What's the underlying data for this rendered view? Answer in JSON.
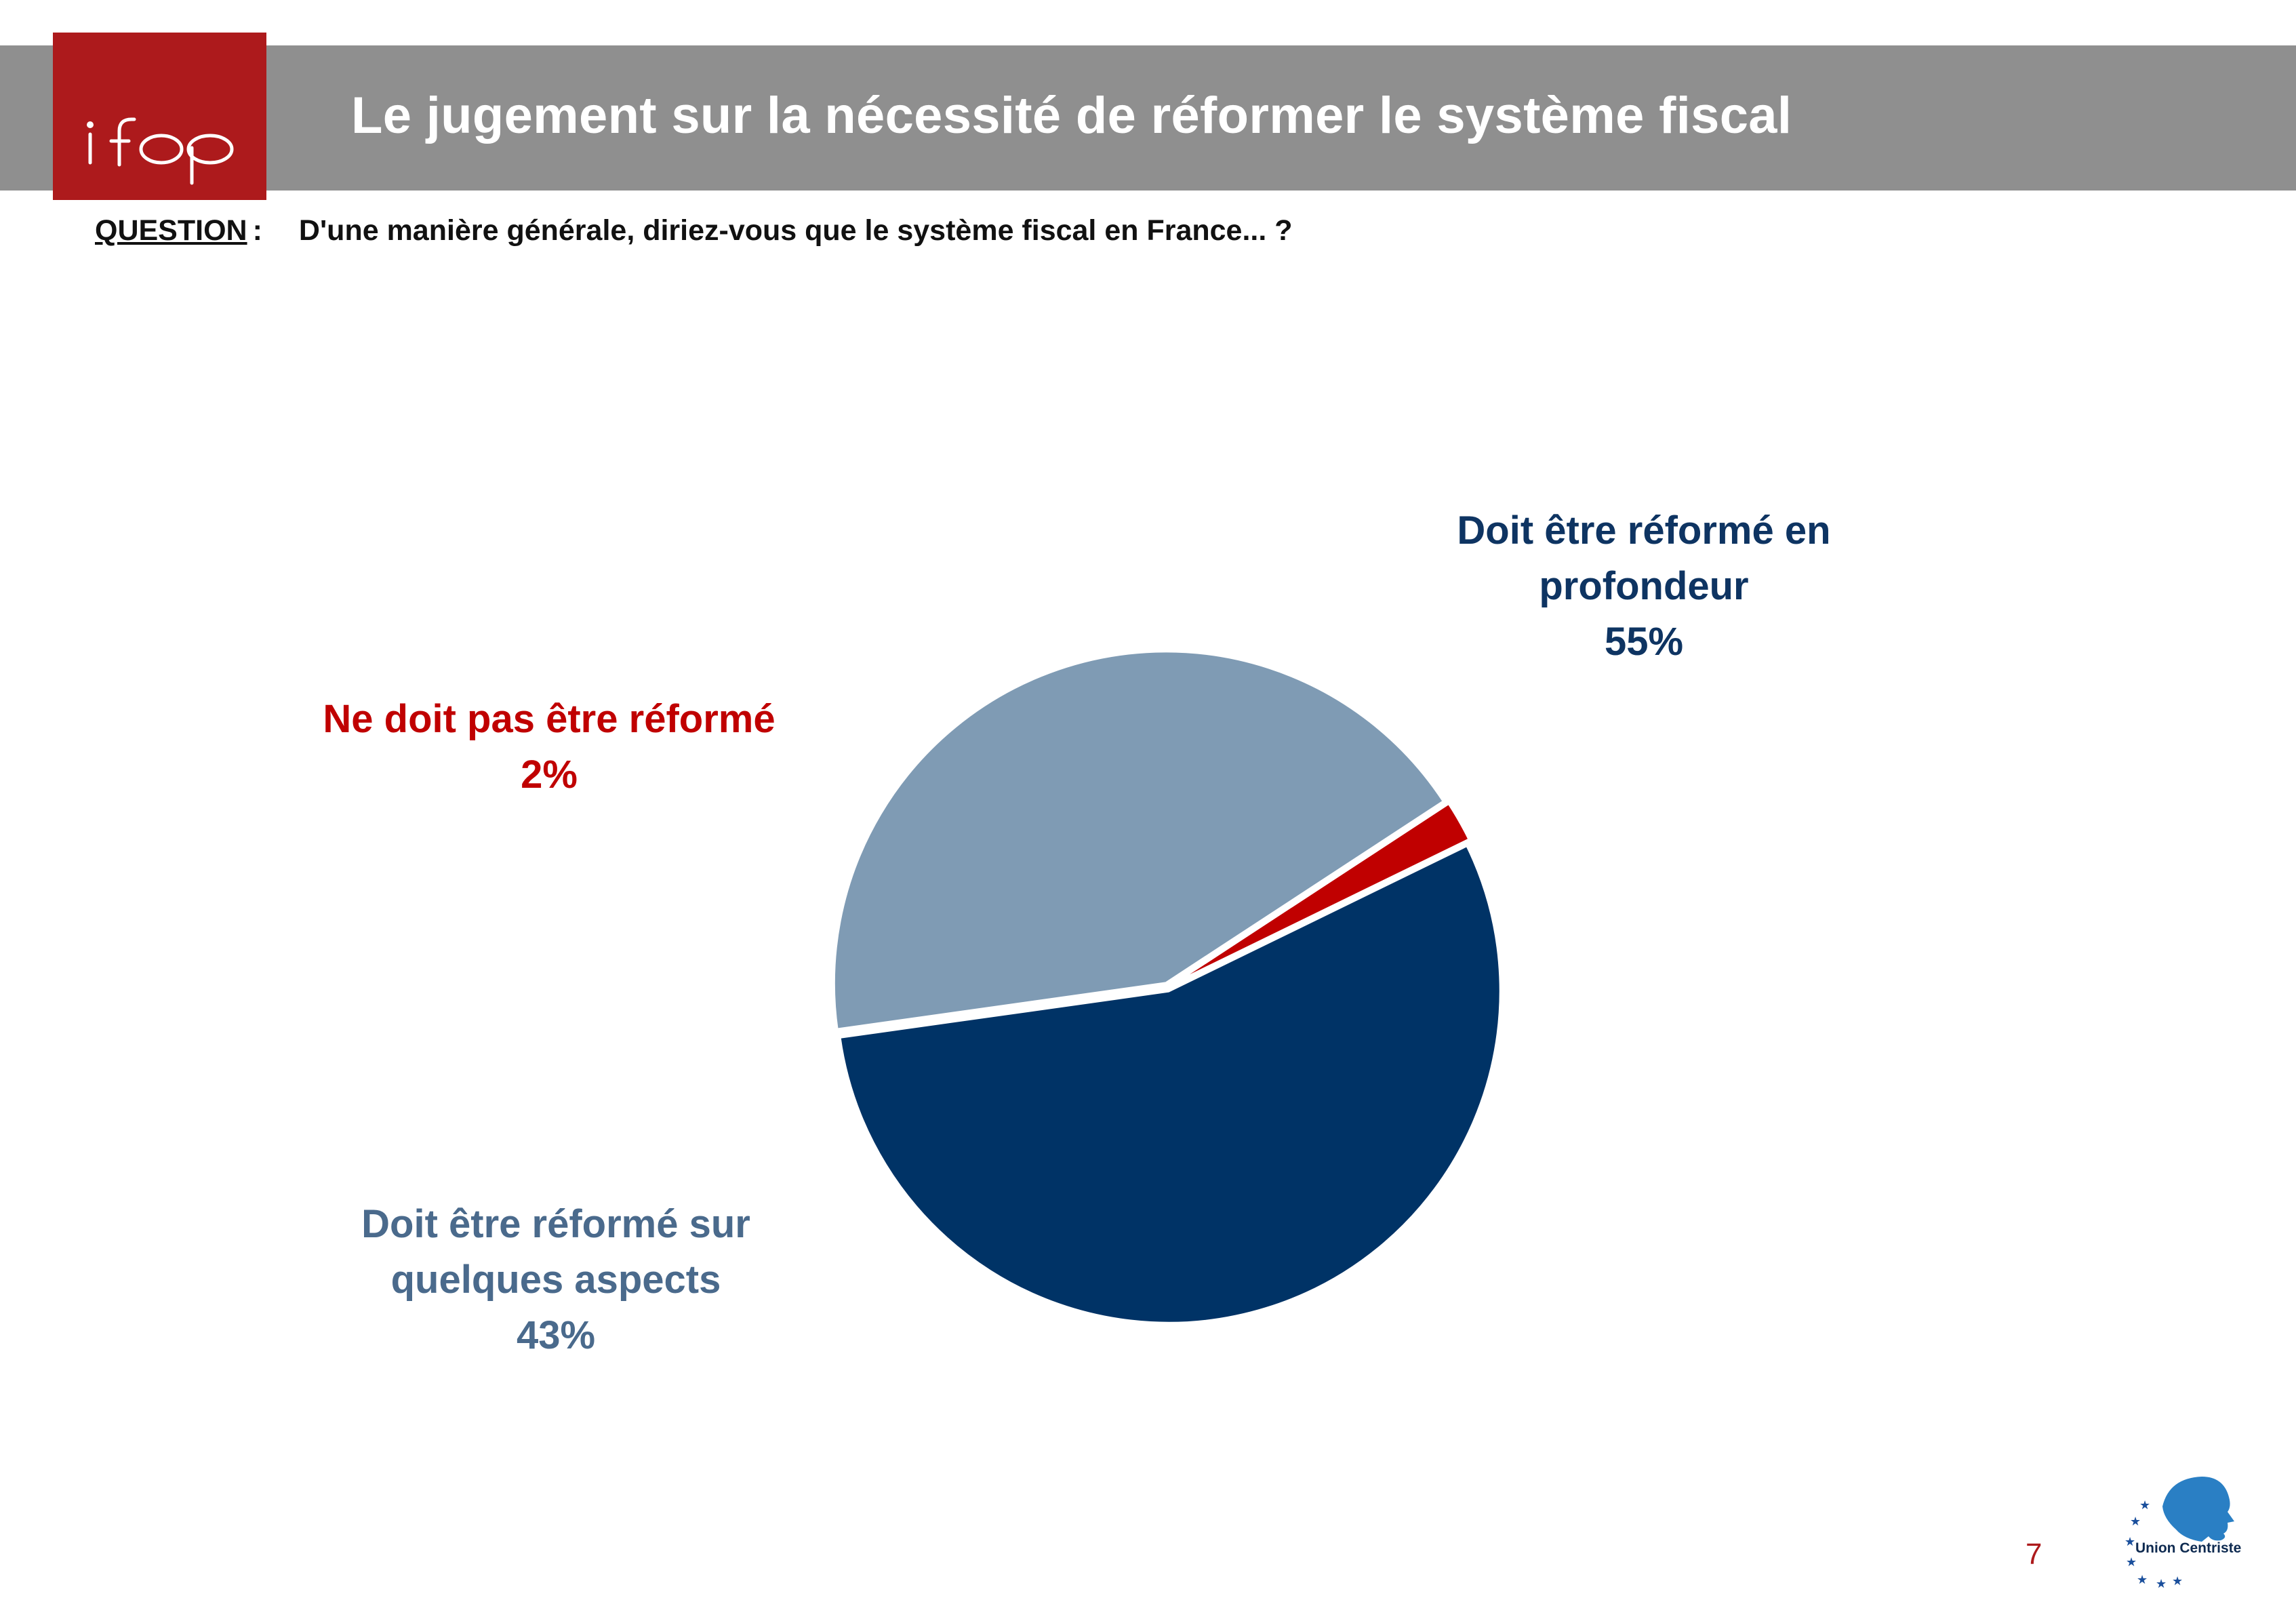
{
  "header": {
    "logo_text": "ifop",
    "title": "Le jugement sur la nécessité de réformer le système fiscal"
  },
  "question": {
    "label": "QUESTION",
    "colon": ":",
    "text": "D'une manière générale, diriez-vous que le système fiscal en France... ?"
  },
  "chart_data": {
    "type": "pie",
    "title": "",
    "slices": [
      {
        "label_lines": [
          "Doit être réformé en",
          "profondeur"
        ],
        "value": 55,
        "value_label": "55%",
        "color": "#003366"
      },
      {
        "label_lines": [
          "Doit être réformé sur",
          "quelques aspects"
        ],
        "value": 43,
        "value_label": "43%",
        "color": "#7f9bb4"
      },
      {
        "label_lines": [
          "Ne doit pas être réformé"
        ],
        "value": 2,
        "value_label": "2%",
        "color": "#c00000"
      }
    ],
    "start_angle_deg": -26,
    "direction": "clockwise",
    "exploded": true,
    "legend": "none"
  },
  "footer": {
    "page_number": "7",
    "partner_logo_text": "Union Centriste",
    "partner_logo_icon": "profile-head-with-stars-icon"
  }
}
